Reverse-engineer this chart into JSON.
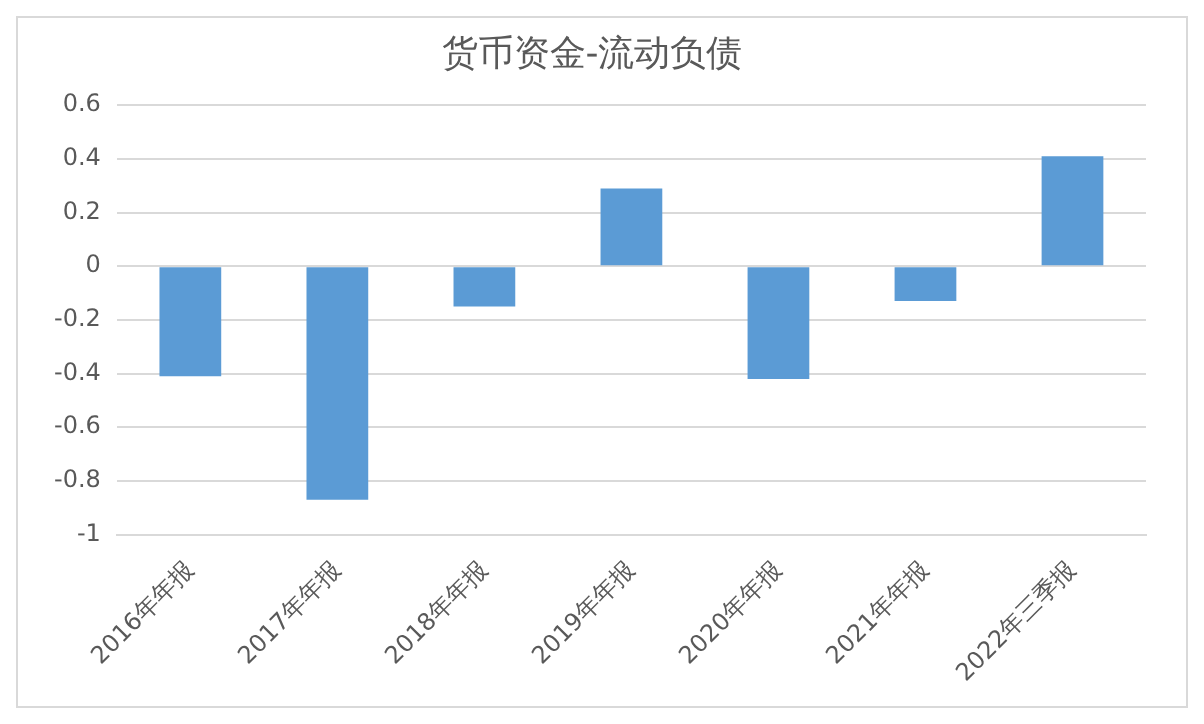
{
  "chart_data": {
    "type": "bar",
    "title": "货币资金-流动负债",
    "categories": [
      "2016年年报",
      "2017年年报",
      "2018年年报",
      "2019年年报",
      "2020年年报",
      "2021年年报",
      "2022年三季报"
    ],
    "values": [
      -0.41,
      -0.87,
      -0.15,
      0.29,
      -0.42,
      -0.13,
      0.41
    ],
    "color": "#5b9bd5",
    "ylim": [
      -1,
      0.6
    ],
    "yticks": [
      -1,
      -0.8,
      -0.6,
      -0.4,
      -0.2,
      0,
      0.2,
      0.4,
      0.6
    ],
    "grid": "y",
    "legend": false
  }
}
